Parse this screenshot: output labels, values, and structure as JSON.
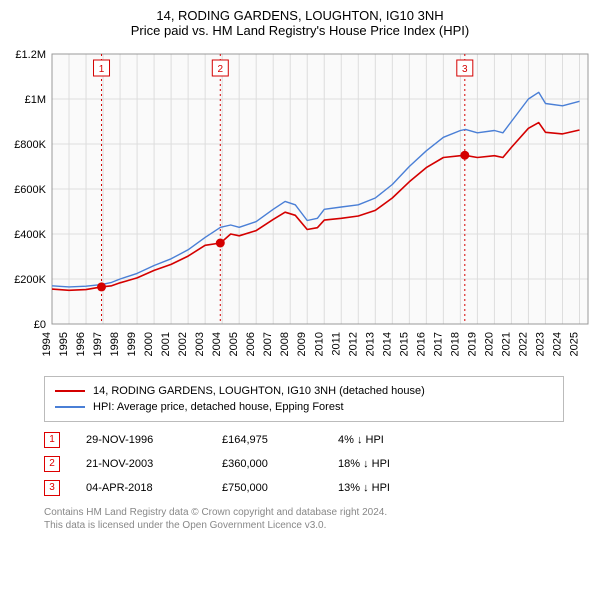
{
  "title_line1": "14, RODING GARDENS, LOUGHTON, IG10 3NH",
  "title_line2": "Price paid vs. HM Land Registry's House Price Index (HPI)",
  "chart": {
    "type": "line",
    "plot_bg": "#fafafa",
    "grid_color": "#dddddd",
    "axis_color": "#000000",
    "x_range": [
      1994,
      2025.5
    ],
    "y_range": [
      0,
      1200000
    ],
    "y_ticks": [
      0,
      200000,
      400000,
      600000,
      800000,
      1000000,
      1200000
    ],
    "y_tick_labels": [
      "£0",
      "£200K",
      "£400K",
      "£600K",
      "£800K",
      "£1M",
      "£1.2M"
    ],
    "x_ticks": [
      1994,
      1995,
      1996,
      1997,
      1998,
      1999,
      2000,
      2001,
      2002,
      2003,
      2004,
      2005,
      2006,
      2007,
      2008,
      2009,
      2010,
      2011,
      2012,
      2013,
      2014,
      2015,
      2016,
      2017,
      2018,
      2019,
      2020,
      2021,
      2022,
      2023,
      2024,
      2025
    ],
    "series": [
      {
        "name": "HPI: Average price, detached house, Epping Forest",
        "color": "#4a7fd6",
        "width": 1.4,
        "points": [
          [
            1994.0,
            170000
          ],
          [
            1995.0,
            165000
          ],
          [
            1996.0,
            168000
          ],
          [
            1996.9,
            175000
          ],
          [
            1997.5,
            185000
          ],
          [
            1998.0,
            200000
          ],
          [
            1999.0,
            225000
          ],
          [
            2000.0,
            260000
          ],
          [
            2001.0,
            290000
          ],
          [
            2002.0,
            330000
          ],
          [
            2003.0,
            385000
          ],
          [
            2003.9,
            430000
          ],
          [
            2004.5,
            440000
          ],
          [
            2005.0,
            430000
          ],
          [
            2006.0,
            455000
          ],
          [
            2007.0,
            510000
          ],
          [
            2007.7,
            545000
          ],
          [
            2008.3,
            530000
          ],
          [
            2009.0,
            460000
          ],
          [
            2009.6,
            470000
          ],
          [
            2010.0,
            510000
          ],
          [
            2011.0,
            520000
          ],
          [
            2012.0,
            530000
          ],
          [
            2013.0,
            560000
          ],
          [
            2014.0,
            620000
          ],
          [
            2015.0,
            700000
          ],
          [
            2016.0,
            770000
          ],
          [
            2017.0,
            830000
          ],
          [
            2018.0,
            860000
          ],
          [
            2018.3,
            865000
          ],
          [
            2019.0,
            850000
          ],
          [
            2020.0,
            860000
          ],
          [
            2020.5,
            850000
          ],
          [
            2021.0,
            900000
          ],
          [
            2022.0,
            1000000
          ],
          [
            2022.6,
            1030000
          ],
          [
            2023.0,
            980000
          ],
          [
            2024.0,
            970000
          ],
          [
            2025.0,
            990000
          ]
        ]
      },
      {
        "name": "14, RODING GARDENS, LOUGHTON, IG10 3NH (detached house)",
        "color": "#d40000",
        "width": 1.6,
        "points": [
          [
            1994.0,
            155000
          ],
          [
            1995.0,
            150000
          ],
          [
            1996.0,
            153000
          ],
          [
            1996.9,
            164975
          ],
          [
            1997.5,
            170000
          ],
          [
            1998.0,
            183000
          ],
          [
            1999.0,
            205000
          ],
          [
            2000.0,
            238000
          ],
          [
            2001.0,
            265000
          ],
          [
            2002.0,
            302000
          ],
          [
            2003.0,
            350000
          ],
          [
            2003.9,
            360000
          ],
          [
            2004.5,
            400000
          ],
          [
            2005.0,
            392000
          ],
          [
            2006.0,
            415000
          ],
          [
            2007.0,
            465000
          ],
          [
            2007.7,
            497000
          ],
          [
            2008.3,
            483000
          ],
          [
            2009.0,
            420000
          ],
          [
            2009.6,
            428000
          ],
          [
            2010.0,
            462000
          ],
          [
            2011.0,
            470000
          ],
          [
            2012.0,
            480000
          ],
          [
            2013.0,
            505000
          ],
          [
            2014.0,
            560000
          ],
          [
            2015.0,
            632000
          ],
          [
            2016.0,
            695000
          ],
          [
            2017.0,
            740000
          ],
          [
            2018.0,
            748000
          ],
          [
            2018.26,
            750000
          ],
          [
            2019.0,
            740000
          ],
          [
            2020.0,
            748000
          ],
          [
            2020.5,
            740000
          ],
          [
            2021.0,
            785000
          ],
          [
            2022.0,
            870000
          ],
          [
            2022.6,
            895000
          ],
          [
            2023.0,
            852000
          ],
          [
            2024.0,
            845000
          ],
          [
            2025.0,
            862000
          ]
        ]
      }
    ],
    "sale_markers": [
      {
        "num": "1",
        "x": 1996.91,
        "y": 164975,
        "vline_color": "#d40000"
      },
      {
        "num": "2",
        "x": 2003.89,
        "y": 360000,
        "vline_color": "#d40000"
      },
      {
        "num": "3",
        "x": 2018.26,
        "y": 750000,
        "vline_color": "#d40000"
      }
    ]
  },
  "legend": {
    "items": [
      {
        "color": "#d40000",
        "label": "14, RODING GARDENS, LOUGHTON, IG10 3NH (detached house)"
      },
      {
        "color": "#4a7fd6",
        "label": "HPI: Average price, detached house, Epping Forest"
      }
    ]
  },
  "sales": [
    {
      "num": "1",
      "date": "29-NOV-1996",
      "price": "£164,975",
      "diff": "4% ↓ HPI"
    },
    {
      "num": "2",
      "date": "21-NOV-2003",
      "price": "£360,000",
      "diff": "18% ↓ HPI"
    },
    {
      "num": "3",
      "date": "04-APR-2018",
      "price": "£750,000",
      "diff": "13% ↓ HPI"
    }
  ],
  "footer_line1": "Contains HM Land Registry data © Crown copyright and database right 2024.",
  "footer_line2": "This data is licensed under the Open Government Licence v3.0."
}
